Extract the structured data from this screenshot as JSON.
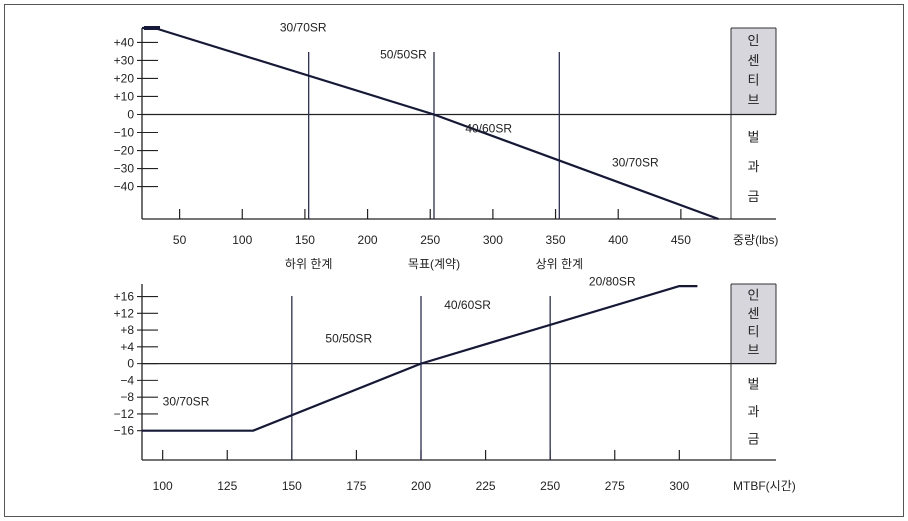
{
  "chart_data": [
    {
      "type": "line",
      "x_unit_label": "중량(lbs)",
      "x_ticks": [
        50,
        100,
        150,
        200,
        250,
        300,
        350,
        400,
        450
      ],
      "y_ticks": [
        "+40",
        "+30",
        "+20",
        "+10",
        "0",
        "−10",
        "−20",
        "−30",
        "−40"
      ],
      "y_tick_values": [
        40,
        30,
        20,
        10,
        0,
        -10,
        -20,
        -30,
        -40
      ],
      "xlim": [
        20,
        490
      ],
      "ylim": [
        -58,
        48
      ],
      "series": [
        {
          "x": [
            20,
            30,
            253,
            480
          ],
          "y": [
            48,
            48,
            0,
            -58
          ]
        }
      ],
      "vlines": [
        {
          "x": 153,
          "label": "하위 한계"
        },
        {
          "x": 253,
          "label": "목표(계약)"
        },
        {
          "x": 353,
          "label": "상위 한계"
        }
      ],
      "annotations": [
        {
          "text": "30/70SR",
          "x": 130,
          "y": 46
        },
        {
          "text": "50/50SR",
          "x": 210,
          "y": 31
        },
        {
          "text": "40/60SR",
          "x": 278,
          "y": -10
        },
        {
          "text": "30/70SR",
          "x": 395,
          "y": -29
        }
      ],
      "side_labels": {
        "incentive": [
          "인",
          "센",
          "티",
          "브"
        ],
        "penalty": [
          "벌",
          "과",
          "금"
        ]
      }
    },
    {
      "type": "line",
      "x_unit_label": "MTBF(시간)",
      "x_ticks": [
        100,
        125,
        150,
        175,
        200,
        225,
        250,
        275,
        300
      ],
      "y_ticks": [
        "+16",
        "+12",
        "+8",
        "+4",
        "0",
        "−4",
        "−8",
        "−12",
        "−16"
      ],
      "y_tick_values": [
        16,
        12,
        8,
        4,
        0,
        -4,
        -8,
        -12,
        -16
      ],
      "xlim": [
        92,
        320
      ],
      "ylim": [
        -23,
        19
      ],
      "series": [
        {
          "x": [
            92,
            135,
            200,
            300,
            307
          ],
          "y": [
            -16,
            -16,
            0,
            18.5,
            18.5
          ]
        }
      ],
      "vlines": [
        {
          "x": 150
        },
        {
          "x": 200
        },
        {
          "x": 250
        }
      ],
      "annotations": [
        {
          "text": "30/70SR",
          "x": 100,
          "y": -10
        },
        {
          "text": "50/50SR",
          "x": 163,
          "y": 5
        },
        {
          "text": "40/60SR",
          "x": 209,
          "y": 13
        },
        {
          "text": "20/80SR",
          "x": 265,
          "y": 18.7
        }
      ],
      "side_labels": {
        "incentive": [
          "인",
          "센",
          "티",
          "브"
        ],
        "penalty": [
          "벌",
          "과",
          "금"
        ]
      }
    }
  ]
}
